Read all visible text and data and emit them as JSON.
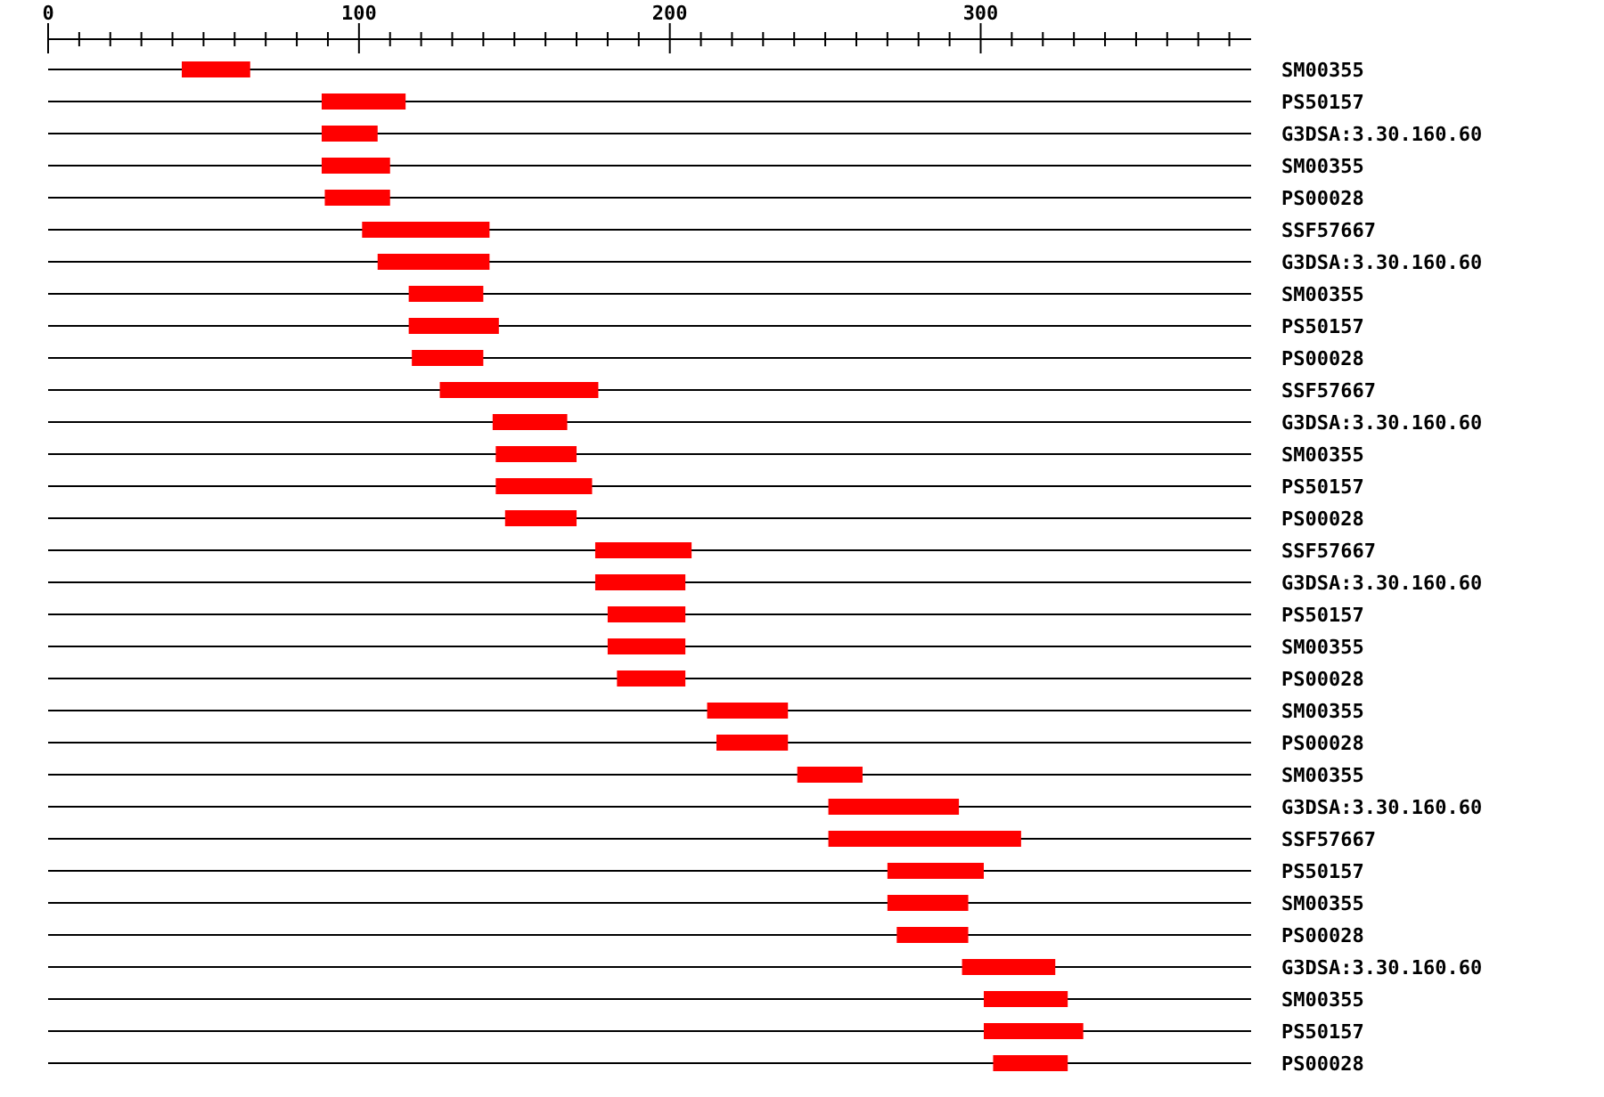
{
  "chart_data": {
    "type": "bar",
    "orientation": "horizontal",
    "grid": "y",
    "color": "#ff0000",
    "categories": [
      "SM00355",
      "PS50157",
      "G3DSA:3.30.160.60",
      "SM00355",
      "PS00028",
      "SSF57667",
      "G3DSA:3.30.160.60",
      "SM00355",
      "PS50157",
      "PS00028",
      "SSF57667",
      "G3DSA:3.30.160.60",
      "SM00355",
      "PS50157",
      "PS00028",
      "SSF57667",
      "G3DSA:3.30.160.60",
      "PS50157",
      "SM00355",
      "PS00028",
      "SM00355",
      "PS00028",
      "SM00355",
      "G3DSA:3.30.160.60",
      "SSF57667",
      "PS50157",
      "SM00355",
      "PS00028",
      "G3DSA:3.30.160.60",
      "SM00355",
      "PS50157",
      "PS00028"
    ],
    "base": [
      43,
      88,
      88,
      88,
      89,
      101,
      106,
      116,
      116,
      117,
      126,
      143,
      144,
      144,
      147,
      176,
      176,
      180,
      180,
      183,
      212,
      215,
      241,
      251,
      251,
      270,
      270,
      273,
      294,
      301,
      301,
      304
    ],
    "values": [
      22,
      27,
      18,
      22,
      21,
      41,
      36,
      24,
      29,
      23,
      51,
      24,
      26,
      31,
      23,
      31,
      29,
      25,
      25,
      22,
      26,
      23,
      21,
      42,
      62,
      31,
      26,
      23,
      30,
      27,
      32,
      24
    ],
    "xlim": [
      0,
      387
    ],
    "xticks": [
      0,
      {
        "value": 10,
        "label": null
      },
      {
        "value": 20,
        "label": null
      },
      {
        "value": 30,
        "label": null
      },
      {
        "value": 40,
        "label": null
      },
      {
        "value": 50,
        "label": null
      },
      {
        "value": 60,
        "label": null
      },
      {
        "value": 70,
        "label": null
      },
      {
        "value": 80,
        "label": null
      },
      {
        "value": 90,
        "label": null
      },
      100,
      {
        "value": 110,
        "label": null
      },
      {
        "value": 120,
        "label": null
      },
      {
        "value": 130,
        "label": null
      },
      {
        "value": 140,
        "label": null
      },
      {
        "value": 150,
        "label": null
      },
      {
        "value": 160,
        "label": null
      },
      {
        "value": 170,
        "label": null
      },
      {
        "value": 180,
        "label": null
      },
      {
        "value": 190,
        "label": null
      },
      200,
      {
        "value": 210,
        "label": null
      },
      {
        "value": 220,
        "label": null
      },
      {
        "value": 230,
        "label": null
      },
      {
        "value": 240,
        "label": null
      },
      {
        "value": 250,
        "label": null
      },
      {
        "value": 260,
        "label": null
      },
      {
        "value": 270,
        "label": null
      },
      {
        "value": 280,
        "label": null
      },
      {
        "value": 290,
        "label": null
      },
      300,
      {
        "value": 310,
        "label": null
      },
      {
        "value": 320,
        "label": null
      },
      {
        "value": 330,
        "label": null
      },
      {
        "value": 340,
        "label": null
      },
      {
        "value": 350,
        "label": null
      },
      {
        "value": 360,
        "label": null
      },
      {
        "value": 370,
        "label": null
      },
      {
        "value": 380,
        "label": null
      }
    ]
  }
}
